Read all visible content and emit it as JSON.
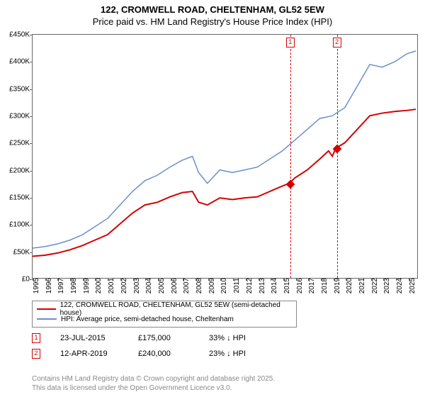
{
  "title": {
    "line1": "122, CROMWELL ROAD, CHELTENHAM, GL52 5EW",
    "line2": "Price paid vs. HM Land Registry's House Price Index (HPI)"
  },
  "chart": {
    "type": "line",
    "xlim": [
      1995,
      2025.8
    ],
    "ylim": [
      0,
      450000
    ],
    "ytick_step": 50000,
    "ytick_labels": [
      "£0",
      "£50K",
      "£100K",
      "£150K",
      "£200K",
      "£250K",
      "£300K",
      "£350K",
      "£400K",
      "£450K"
    ],
    "xticks": [
      1995,
      1996,
      1997,
      1998,
      1999,
      2000,
      2001,
      2002,
      2003,
      2004,
      2005,
      2006,
      2007,
      2008,
      2009,
      2010,
      2011,
      2012,
      2013,
      2014,
      2015,
      2016,
      2017,
      2018,
      2019,
      2020,
      2021,
      2022,
      2023,
      2024,
      2025
    ],
    "background_color": "#ffffff",
    "axis_color": "#666666",
    "series": [
      {
        "name": "property",
        "label": "122, CROMWELL ROAD, CHELTENHAM, GL52 5EW (semi-detached house)",
        "color": "#d40000",
        "line_width": 2,
        "points": [
          [
            1995,
            40000
          ],
          [
            1996,
            42000
          ],
          [
            1997,
            46000
          ],
          [
            1998,
            52000
          ],
          [
            1999,
            60000
          ],
          [
            2000,
            70000
          ],
          [
            2001,
            80000
          ],
          [
            2002,
            100000
          ],
          [
            2003,
            120000
          ],
          [
            2004,
            135000
          ],
          [
            2005,
            140000
          ],
          [
            2006,
            150000
          ],
          [
            2007,
            158000
          ],
          [
            2007.8,
            160000
          ],
          [
            2008.3,
            140000
          ],
          [
            2009,
            135000
          ],
          [
            2010,
            148000
          ],
          [
            2011,
            145000
          ],
          [
            2012,
            148000
          ],
          [
            2013,
            150000
          ],
          [
            2014,
            160000
          ],
          [
            2015,
            170000
          ],
          [
            2015.56,
            175000
          ],
          [
            2016,
            185000
          ],
          [
            2017,
            200000
          ],
          [
            2018,
            220000
          ],
          [
            2018.7,
            235000
          ],
          [
            2019,
            225000
          ],
          [
            2019.28,
            240000
          ],
          [
            2020,
            250000
          ],
          [
            2021,
            275000
          ],
          [
            2022,
            300000
          ],
          [
            2023,
            305000
          ],
          [
            2024,
            308000
          ],
          [
            2025,
            310000
          ],
          [
            2025.7,
            312000
          ]
        ]
      },
      {
        "name": "hpi",
        "label": "HPI: Average price, semi-detached house, Cheltenham",
        "color": "#6b8fc9",
        "line_width": 1.5,
        "points": [
          [
            1995,
            55000
          ],
          [
            1996,
            58000
          ],
          [
            1997,
            63000
          ],
          [
            1998,
            70000
          ],
          [
            1999,
            80000
          ],
          [
            2000,
            95000
          ],
          [
            2001,
            110000
          ],
          [
            2002,
            135000
          ],
          [
            2003,
            160000
          ],
          [
            2004,
            180000
          ],
          [
            2005,
            190000
          ],
          [
            2006,
            205000
          ],
          [
            2007,
            218000
          ],
          [
            2007.8,
            225000
          ],
          [
            2008.3,
            195000
          ],
          [
            2009,
            175000
          ],
          [
            2010,
            200000
          ],
          [
            2011,
            195000
          ],
          [
            2012,
            200000
          ],
          [
            2013,
            205000
          ],
          [
            2014,
            220000
          ],
          [
            2015,
            235000
          ],
          [
            2016,
            255000
          ],
          [
            2017,
            275000
          ],
          [
            2018,
            295000
          ],
          [
            2019,
            300000
          ],
          [
            2020,
            315000
          ],
          [
            2021,
            355000
          ],
          [
            2022,
            395000
          ],
          [
            2023,
            390000
          ],
          [
            2024,
            400000
          ],
          [
            2025,
            415000
          ],
          [
            2025.7,
            420000
          ]
        ]
      }
    ],
    "sale_markers": [
      {
        "n": "1",
        "x": 2015.56,
        "y": 175000,
        "color": "#d40000"
      },
      {
        "n": "2",
        "x": 2019.28,
        "y": 240000,
        "color": "#d40000"
      }
    ]
  },
  "legend": {
    "items": [
      {
        "color": "#d40000",
        "label": "122, CROMWELL ROAD, CHELTENHAM, GL52 5EW (semi-detached house)"
      },
      {
        "color": "#6b8fc9",
        "label": "HPI: Average price, semi-detached house, Cheltenham"
      }
    ]
  },
  "sales": [
    {
      "n": "1",
      "color": "#d40000",
      "date": "23-JUL-2015",
      "price": "£175,000",
      "pct": "33% ↓ HPI"
    },
    {
      "n": "2",
      "color": "#d40000",
      "date": "12-APR-2019",
      "price": "£240,000",
      "pct": "23% ↓ HPI"
    }
  ],
  "footer": {
    "line1": "Contains HM Land Registry data © Crown copyright and database right 2025.",
    "line2": "This data is licensed under the Open Government Licence v3.0."
  }
}
